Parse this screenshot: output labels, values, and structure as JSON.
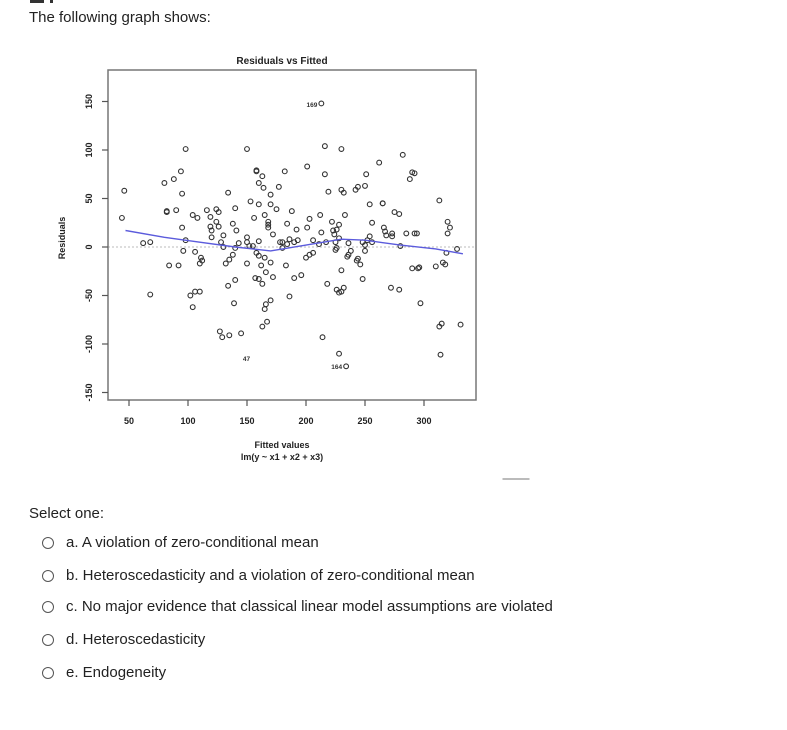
{
  "question": {
    "prompt": "The following graph shows:",
    "select_label": "Select one:",
    "options": [
      {
        "letter": "a",
        "label": "a. A violation of zero-conditional mean"
      },
      {
        "letter": "b",
        "label": "b. Heteroscedasticity and a violation of zero-conditional mean"
      },
      {
        "letter": "c",
        "label": "c. No major evidence that classical linear model assumptions are violated"
      },
      {
        "letter": "d",
        "label": "d. Heteroscedasticity"
      },
      {
        "letter": "e",
        "label": "e. Endogeneity"
      }
    ]
  },
  "colors": {
    "points": "#333333",
    "smoother": "#5b5bdc",
    "zero_line": "#bbbbbb",
    "frame": "#777777"
  },
  "chart_data": {
    "type": "scatter",
    "title": "Residuals vs Fitted",
    "xlabel": "Fitted values",
    "xlabel_sub": "lm(y ~ x1 + x2 + x3)",
    "ylabel": "Residuals",
    "xlim": [
      32,
      343
    ],
    "ylim": [
      -157,
      177
    ],
    "xticks": [
      50,
      100,
      150,
      200,
      250,
      300
    ],
    "yticks": [
      150,
      100,
      50,
      0,
      -50,
      -100,
      -150
    ],
    "grid": false,
    "reference_line": {
      "y": 0,
      "style": "dotted"
    },
    "annotations": [
      {
        "label": "169",
        "x": 213,
        "y": 147
      },
      {
        "label": "47",
        "x": 156,
        "y": -115
      },
      {
        "label": "164",
        "x": 234,
        "y": -123
      }
    ],
    "smoother": {
      "x": [
        47,
        80,
        110,
        140,
        170,
        200,
        230,
        250,
        280,
        310,
        333
      ],
      "y": [
        17,
        10,
        5,
        0,
        -4,
        2,
        8,
        7,
        2,
        -2,
        -7
      ]
    },
    "points": [
      [
        46,
        58
      ],
      [
        44,
        30
      ],
      [
        62,
        4
      ],
      [
        68,
        5
      ],
      [
        68,
        -49
      ],
      [
        82,
        37
      ],
      [
        80,
        66
      ],
      [
        82,
        36
      ],
      [
        88,
        70
      ],
      [
        98,
        101
      ],
      [
        94,
        78
      ],
      [
        95,
        55
      ],
      [
        95,
        20
      ],
      [
        90,
        38
      ],
      [
        104,
        33
      ],
      [
        108,
        30
      ],
      [
        116,
        38
      ],
      [
        84,
        -19
      ],
      [
        92,
        -19
      ],
      [
        98,
        7
      ],
      [
        96,
        -4
      ],
      [
        106,
        -5
      ],
      [
        106,
        -46
      ],
      [
        102,
        -50
      ],
      [
        104,
        -62
      ],
      [
        110,
        -46
      ],
      [
        111,
        -11
      ],
      [
        112,
        -14
      ],
      [
        110,
        -17
      ],
      [
        124,
        39
      ],
      [
        119,
        31
      ],
      [
        119,
        21
      ],
      [
        120,
        17
      ],
      [
        120,
        10
      ],
      [
        128,
        5
      ],
      [
        130,
        0
      ],
      [
        130,
        12
      ],
      [
        126,
        21
      ],
      [
        124,
        26
      ],
      [
        126,
        36
      ],
      [
        138,
        24
      ],
      [
        134,
        56
      ],
      [
        140,
        40
      ],
      [
        132,
        -17
      ],
      [
        138,
        -8
      ],
      [
        134,
        -40
      ],
      [
        140,
        -34
      ],
      [
        139,
        -58
      ],
      [
        129,
        -93
      ],
      [
        127,
        -87
      ],
      [
        135,
        -91
      ],
      [
        145,
        -89
      ],
      [
        140,
        -1
      ],
      [
        141,
        17
      ],
      [
        143,
        4
      ],
      [
        135,
        -13
      ],
      [
        150,
        101
      ],
      [
        153,
        47
      ],
      [
        160,
        44
      ],
      [
        152,
        1
      ],
      [
        150,
        5
      ],
      [
        150,
        -17
      ],
      [
        150,
        10
      ],
      [
        155,
        1
      ],
      [
        160,
        6
      ],
      [
        156,
        30
      ],
      [
        158,
        79
      ],
      [
        163,
        73
      ],
      [
        158,
        78
      ],
      [
        160,
        66
      ],
      [
        164,
        61
      ],
      [
        170,
        54
      ],
      [
        170,
        44
      ],
      [
        165,
        33
      ],
      [
        168,
        20
      ],
      [
        168,
        23
      ],
      [
        172,
        13
      ],
      [
        158,
        -6
      ],
      [
        160,
        -9
      ],
      [
        168,
        26
      ],
      [
        165,
        -11
      ],
      [
        162,
        -19
      ],
      [
        170,
        -16
      ],
      [
        166,
        -26
      ],
      [
        160,
        -33
      ],
      [
        163,
        -38
      ],
      [
        157,
        -32
      ],
      [
        172,
        -31
      ],
      [
        170,
        -55
      ],
      [
        166,
        -59
      ],
      [
        165,
        -64
      ],
      [
        167,
        -77
      ],
      [
        163,
        -82
      ],
      [
        178,
        5
      ],
      [
        180,
        5
      ],
      [
        184,
        3
      ],
      [
        180,
        -1
      ],
      [
        186,
        8
      ],
      [
        190,
        5
      ],
      [
        175,
        39
      ],
      [
        182,
        78
      ],
      [
        177,
        62
      ],
      [
        188,
        37
      ],
      [
        184,
        24
      ],
      [
        193,
        7
      ],
      [
        192,
        18
      ],
      [
        183,
        -19
      ],
      [
        190,
        -32
      ],
      [
        196,
        -29
      ],
      [
        186,
        -51
      ],
      [
        201,
        83
      ],
      [
        201,
        20
      ],
      [
        203,
        29
      ],
      [
        206,
        7
      ],
      [
        203,
        -8
      ],
      [
        206,
        -6
      ],
      [
        200,
        -11
      ],
      [
        216,
        104
      ],
      [
        213,
        148
      ],
      [
        216,
        75
      ],
      [
        219,
        57
      ],
      [
        212,
        33
      ],
      [
        213,
        15
      ],
      [
        217,
        5
      ],
      [
        211,
        3
      ],
      [
        222,
        26
      ],
      [
        223,
        17
      ],
      [
        225,
        -3
      ],
      [
        225,
        5
      ],
      [
        228,
        9
      ],
      [
        224,
        13
      ],
      [
        226,
        18
      ],
      [
        218,
        -38
      ],
      [
        214,
        -93
      ],
      [
        230,
        101
      ],
      [
        230,
        59
      ],
      [
        232,
        56
      ],
      [
        233,
        33
      ],
      [
        236,
        4
      ],
      [
        228,
        23
      ],
      [
        226,
        -1
      ],
      [
        230,
        -24
      ],
      [
        226,
        -44
      ],
      [
        228,
        -47
      ],
      [
        230,
        -46
      ],
      [
        232,
        -42
      ],
      [
        236,
        -8
      ],
      [
        235,
        -10
      ],
      [
        228,
        -110
      ],
      [
        234,
        -123
      ],
      [
        244,
        62
      ],
      [
        242,
        59
      ],
      [
        250,
        63
      ],
      [
        251,
        75
      ],
      [
        254,
        44
      ],
      [
        243,
        -14
      ],
      [
        250,
        2
      ],
      [
        248,
        5
      ],
      [
        252,
        7
      ],
      [
        238,
        -4
      ],
      [
        244,
        -12
      ],
      [
        250,
        -4
      ],
      [
        246,
        -18
      ],
      [
        248,
        -33
      ],
      [
        254,
        11
      ],
      [
        256,
        25
      ],
      [
        256,
        5
      ],
      [
        262,
        87
      ],
      [
        265,
        45
      ],
      [
        265,
        45
      ],
      [
        266,
        20
      ],
      [
        267,
        16
      ],
      [
        268,
        12
      ],
      [
        273,
        14
      ],
      [
        273,
        11
      ],
      [
        275,
        36
      ],
      [
        279,
        34
      ],
      [
        280,
        1
      ],
      [
        272,
        -42
      ],
      [
        285,
        14
      ],
      [
        279,
        -44
      ],
      [
        292,
        14
      ],
      [
        282,
        95
      ],
      [
        288,
        70
      ],
      [
        290,
        77
      ],
      [
        292,
        76
      ],
      [
        295,
        -22
      ],
      [
        290,
        -22
      ],
      [
        296,
        -21
      ],
      [
        294,
        14
      ],
      [
        297,
        -58
      ],
      [
        313,
        48
      ],
      [
        320,
        26
      ],
      [
        322,
        20
      ],
      [
        320,
        14
      ],
      [
        316,
        -16
      ],
      [
        318,
        -18
      ],
      [
        319,
        -6
      ],
      [
        313,
        -82
      ],
      [
        315,
        -79
      ],
      [
        314,
        -111
      ],
      [
        331,
        -80
      ],
      [
        328,
        -2
      ],
      [
        310,
        -20
      ]
    ]
  }
}
